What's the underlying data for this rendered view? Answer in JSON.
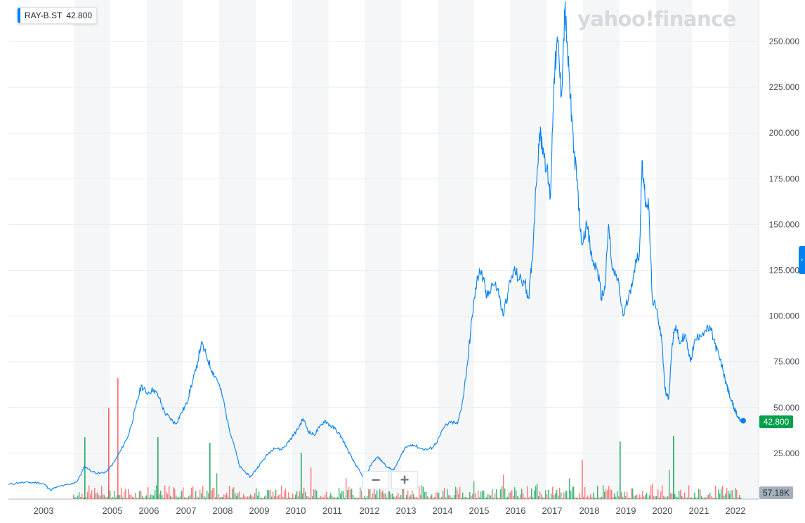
{
  "chart_data": {
    "type": "line",
    "ticker": "RAY-B.ST",
    "last_price": "42.800",
    "volume_label": "57.18K",
    "watermark": "yahoo!finance",
    "line_color": "#0081f2",
    "up_volume_color": "#00a14b",
    "down_volume_color": "#ff4d52",
    "ylim": [
      0,
      270
    ],
    "xlim": [
      2002.2,
      2022.4
    ],
    "y_ticks": [
      "25.000",
      "50.000",
      "75.000",
      "100.000",
      "125.000",
      "150.000",
      "175.000",
      "200.000",
      "225.000",
      "250.000"
    ],
    "x_ticks": [
      "2003",
      "2005",
      "2006",
      "2007",
      "2008",
      "2009",
      "2010",
      "2011",
      "2012",
      "2013",
      "2014",
      "2015",
      "2016",
      "2017",
      "2018",
      "2019",
      "2020",
      "2021",
      "2022"
    ],
    "series": [
      {
        "points": [
          [
            2002.2,
            8
          ],
          [
            2002.5,
            9
          ],
          [
            2002.8,
            9
          ],
          [
            2003.0,
            9
          ],
          [
            2003.2,
            8
          ],
          [
            2003.35,
            5
          ],
          [
            2003.6,
            7
          ],
          [
            2003.9,
            8
          ],
          [
            2004.1,
            10
          ],
          [
            2004.3,
            18
          ],
          [
            2004.5,
            15
          ],
          [
            2004.7,
            14
          ],
          [
            2004.9,
            15
          ],
          [
            2005.1,
            20
          ],
          [
            2005.3,
            27
          ],
          [
            2005.5,
            35
          ],
          [
            2005.7,
            50
          ],
          [
            2005.85,
            62
          ],
          [
            2006.0,
            58
          ],
          [
            2006.2,
            60
          ],
          [
            2006.35,
            55
          ],
          [
            2006.5,
            47
          ],
          [
            2006.65,
            44
          ],
          [
            2006.8,
            41
          ],
          [
            2006.95,
            47
          ],
          [
            2007.1,
            52
          ],
          [
            2007.2,
            60
          ],
          [
            2007.35,
            70
          ],
          [
            2007.5,
            85
          ],
          [
            2007.65,
            78
          ],
          [
            2007.8,
            70
          ],
          [
            2007.95,
            65
          ],
          [
            2008.1,
            55
          ],
          [
            2008.25,
            40
          ],
          [
            2008.4,
            30
          ],
          [
            2008.55,
            18
          ],
          [
            2008.7,
            15
          ],
          [
            2008.85,
            12
          ],
          [
            2009.0,
            16
          ],
          [
            2009.15,
            20
          ],
          [
            2009.35,
            25
          ],
          [
            2009.5,
            28
          ],
          [
            2009.7,
            27
          ],
          [
            2009.85,
            30
          ],
          [
            2010.0,
            34
          ],
          [
            2010.15,
            38
          ],
          [
            2010.3,
            44
          ],
          [
            2010.45,
            37
          ],
          [
            2010.6,
            35
          ],
          [
            2010.75,
            39
          ],
          [
            2010.9,
            43
          ],
          [
            2011.05,
            40
          ],
          [
            2011.2,
            38
          ],
          [
            2011.35,
            34
          ],
          [
            2011.5,
            28
          ],
          [
            2011.65,
            22
          ],
          [
            2011.8,
            17
          ],
          [
            2011.95,
            12
          ],
          [
            2012.05,
            14
          ],
          [
            2012.2,
            20
          ],
          [
            2012.35,
            23
          ],
          [
            2012.5,
            20
          ],
          [
            2012.65,
            17
          ],
          [
            2012.8,
            16
          ],
          [
            2012.95,
            22
          ],
          [
            2013.1,
            28
          ],
          [
            2013.3,
            30
          ],
          [
            2013.5,
            28
          ],
          [
            2013.7,
            27
          ],
          [
            2013.85,
            28
          ],
          [
            2014.0,
            32
          ],
          [
            2014.2,
            40
          ],
          [
            2014.4,
            42
          ],
          [
            2014.55,
            41
          ],
          [
            2014.7,
            55
          ],
          [
            2014.85,
            80
          ],
          [
            2014.95,
            100
          ],
          [
            2015.05,
            115
          ],
          [
            2015.15,
            126
          ],
          [
            2015.25,
            120
          ],
          [
            2015.35,
            110
          ],
          [
            2015.5,
            118
          ],
          [
            2015.65,
            115
          ],
          [
            2015.8,
            100
          ],
          [
            2015.95,
            115
          ],
          [
            2016.1,
            125
          ],
          [
            2016.25,
            120
          ],
          [
            2016.4,
            118
          ],
          [
            2016.5,
            110
          ],
          [
            2016.6,
            130
          ],
          [
            2016.7,
            170
          ],
          [
            2016.8,
            200
          ],
          [
            2016.9,
            192
          ],
          [
            2017.0,
            180
          ],
          [
            2017.1,
            165
          ],
          [
            2017.2,
            230
          ],
          [
            2017.3,
            250
          ],
          [
            2017.4,
            220
          ],
          [
            2017.5,
            268
          ],
          [
            2017.55,
            250
          ],
          [
            2017.65,
            220
          ],
          [
            2017.75,
            190
          ],
          [
            2017.85,
            170
          ],
          [
            2017.95,
            140
          ],
          [
            2018.1,
            150
          ],
          [
            2018.25,
            130
          ],
          [
            2018.4,
            125
          ],
          [
            2018.5,
            110
          ],
          [
            2018.6,
            115
          ],
          [
            2018.7,
            150
          ],
          [
            2018.8,
            125
          ],
          [
            2018.95,
            120
          ],
          [
            2019.1,
            100
          ],
          [
            2019.25,
            110
          ],
          [
            2019.4,
            125
          ],
          [
            2019.55,
            135
          ],
          [
            2019.62,
            185
          ],
          [
            2019.7,
            165
          ],
          [
            2019.8,
            160
          ],
          [
            2019.9,
            110
          ],
          [
            2020.05,
            100
          ],
          [
            2020.15,
            90
          ],
          [
            2020.25,
            60
          ],
          [
            2020.35,
            55
          ],
          [
            2020.45,
            85
          ],
          [
            2020.55,
            95
          ],
          [
            2020.65,
            85
          ],
          [
            2020.8,
            90
          ],
          [
            2020.95,
            75
          ],
          [
            2021.05,
            85
          ],
          [
            2021.2,
            90
          ],
          [
            2021.35,
            92
          ],
          [
            2021.5,
            93
          ],
          [
            2021.62,
            85
          ],
          [
            2021.75,
            77
          ],
          [
            2021.85,
            70
          ],
          [
            2021.95,
            62
          ],
          [
            2022.05,
            55
          ],
          [
            2022.15,
            50
          ],
          [
            2022.25,
            45
          ],
          [
            2022.33,
            43
          ],
          [
            2022.4,
            42.8
          ]
        ]
      }
    ],
    "grid": true,
    "x_axis_shading": "alternating",
    "legend_position": "top-left"
  },
  "zoom": {
    "out_label": "−",
    "in_label": "+"
  },
  "side_handle": {
    "label": "›"
  }
}
